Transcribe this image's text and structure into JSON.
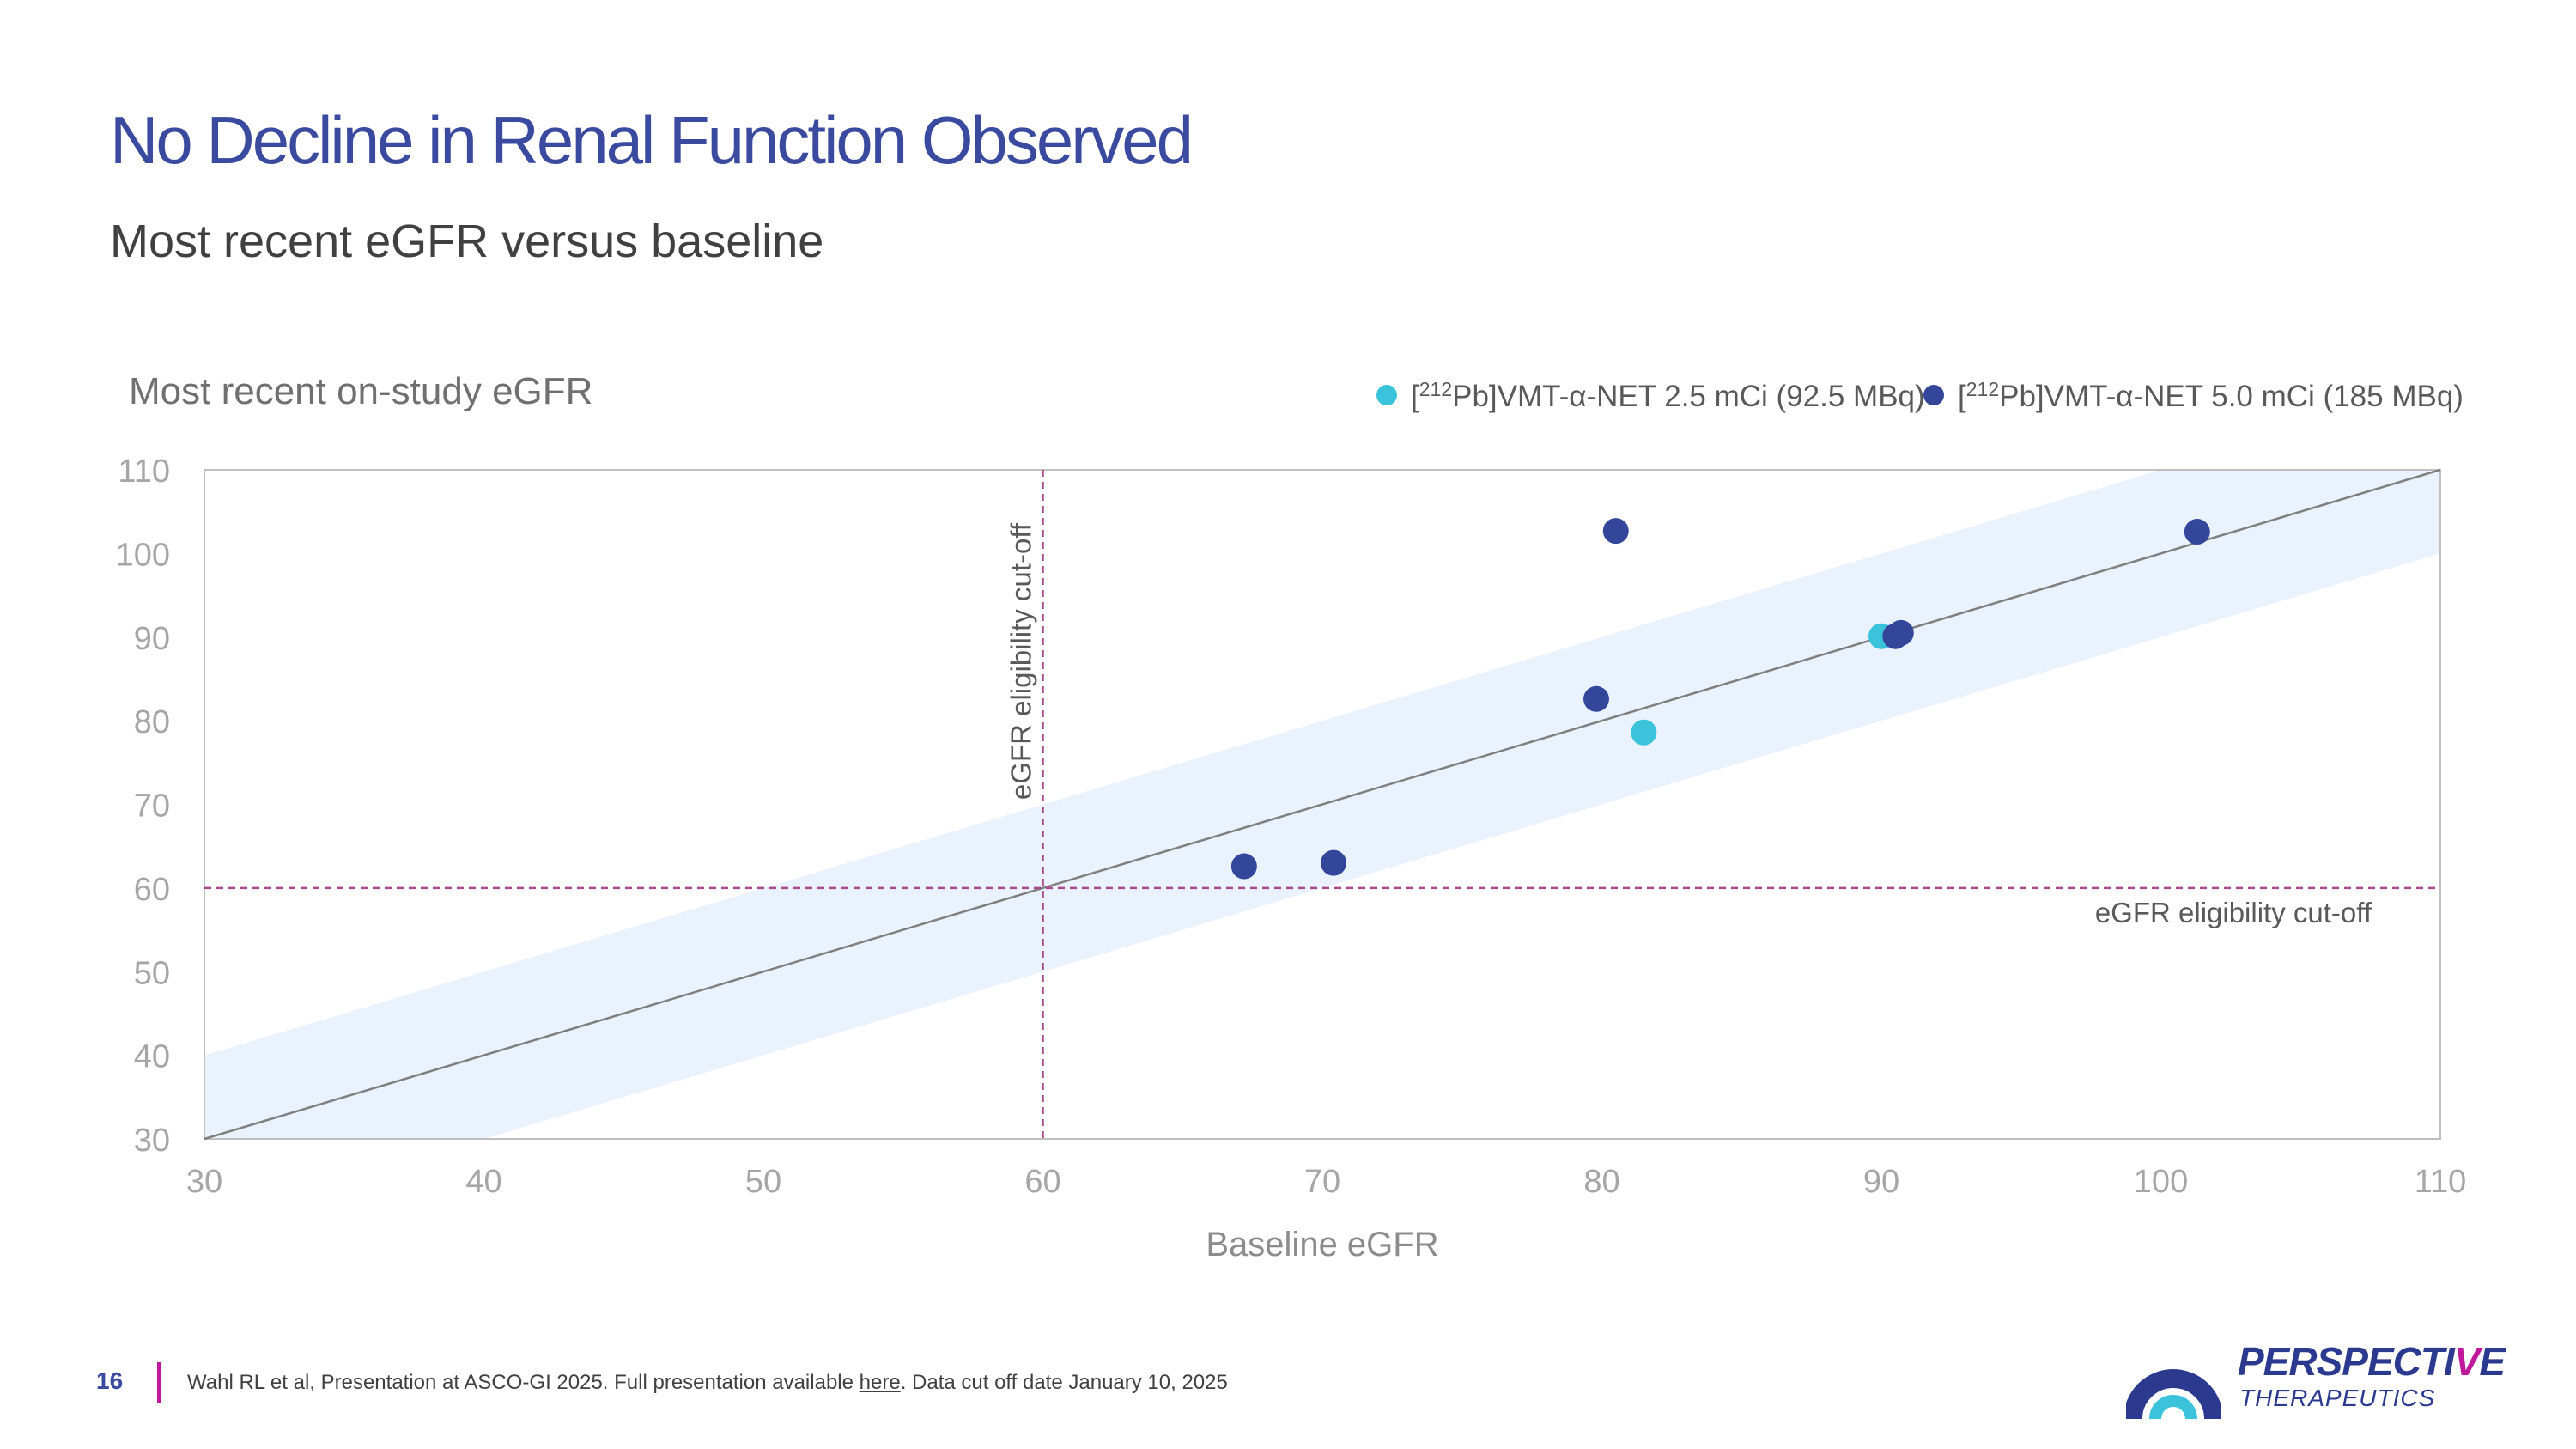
{
  "page": {
    "title": "No Decline in Renal Function Observed",
    "subtitle": "Most recent eGFR versus baseline"
  },
  "chart_data": {
    "type": "scatter",
    "ylabel": "Most recent on-study eGFR",
    "xlabel": "Baseline eGFR",
    "xlim": [
      30,
      110
    ],
    "ylim": [
      30,
      110
    ],
    "xticks": [
      30,
      40,
      50,
      60,
      70,
      80,
      90,
      100,
      110
    ],
    "yticks": [
      30,
      40,
      50,
      60,
      70,
      80,
      90,
      100,
      110
    ],
    "grid": false,
    "legend_position": "top-right",
    "series": [
      {
        "name": "VMT-α-NET 2.5 mCi (92.5 MBq)",
        "name_prefix": "[",
        "name_sup": "212",
        "name_mid": "Pb]",
        "color": "#3BC3DC",
        "x": [
          81.5,
          90
        ],
        "y": [
          78.6,
          90.1
        ]
      },
      {
        "name": "VMT-α-NET 5.0 mCi (185 MBq)",
        "name_prefix": "[",
        "name_sup": "212",
        "name_mid": "Pb]",
        "color": "#34469A",
        "x": [
          67.2,
          70.4,
          79.8,
          80.5,
          90.5,
          90.7,
          101.3
        ],
        "y": [
          62.6,
          63.0,
          82.6,
          102.7,
          90.1,
          90.5,
          102.6
        ]
      }
    ],
    "identity_line": {
      "from": [
        30,
        30
      ],
      "to": [
        110,
        110
      ],
      "color": "#7F7F7F"
    },
    "band": {
      "offset": 10,
      "color": "#EAF2FE"
    },
    "cutoff": {
      "value": 60,
      "color": "#A9488A",
      "vertical_label": "eGFR eligibility cut-off",
      "horizontal_label": "eGFR eligibility cut-off"
    }
  },
  "footer": {
    "page_number": "16",
    "citation_before": "Wahl RL et al, Presentation at ASCO-GI 2025. Full presentation available ",
    "citation_link": "here",
    "citation_after": ". Data cut off date January 10, 2025"
  },
  "logo": {
    "name_main": "PERSPECTI",
    "name_accent": "V",
    "name_end": "E",
    "sub": "THERAPEUTICS",
    "icon": "perspective-arc-logo-icon"
  }
}
